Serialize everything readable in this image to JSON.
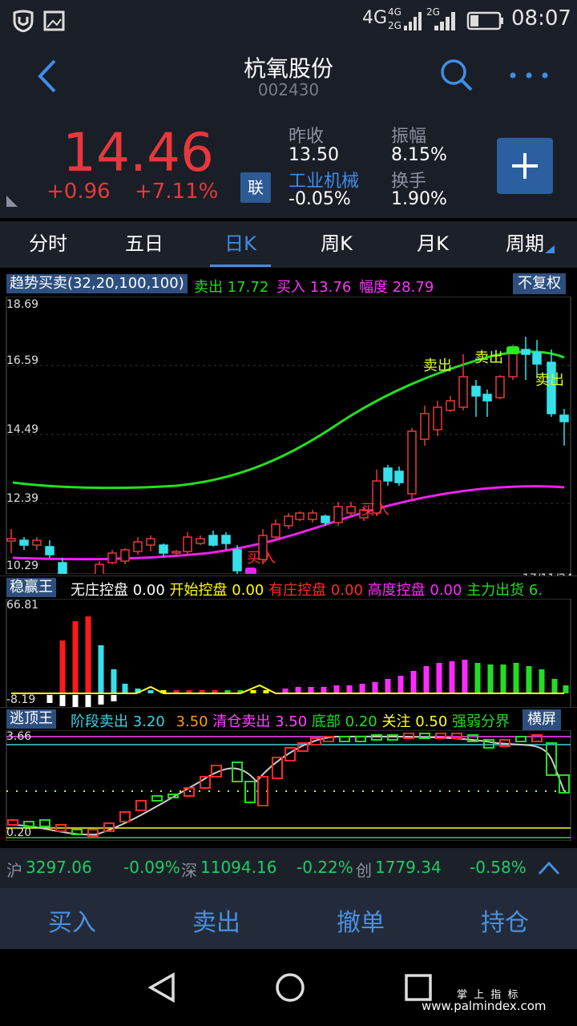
{
  "status": {
    "network": "4G",
    "network2_top": "4G",
    "network2_bottom": "2G",
    "network3": "2G",
    "time": "08:07"
  },
  "header": {
    "title": "杭氧股份",
    "code": "002430"
  },
  "quote": {
    "price": "14.46",
    "change": "+0.96",
    "change_pct": "+7.11%",
    "prev_close_label": "昨收",
    "prev_close": "13.50",
    "amplitude_label": "振幅",
    "amplitude": "8.15%",
    "sector": "工业机械",
    "sector_chg": "-0.05%",
    "turnover_label": "换手",
    "turnover": "1.90%",
    "link_badge": "联"
  },
  "tabs": [
    {
      "label": "分时"
    },
    {
      "label": "五日"
    },
    {
      "label": "日K"
    },
    {
      "label": "周K"
    },
    {
      "label": "月K"
    },
    {
      "label": "周期"
    }
  ],
  "chart1": {
    "indicator": "趋势买卖(32,20,100,100)",
    "sell_label": "卖出",
    "sell_value": "17.72",
    "buy_label": "买入",
    "buy_value": "13.76",
    "range_label": "幅度",
    "range_value": "28.79",
    "button": "不复权",
    "y_labels": [
      "18.69",
      "16.59",
      "14.49",
      "12.39",
      "10.29"
    ],
    "date": "17/11/24",
    "signals": [
      {
        "text": "买入",
        "kind": "buy"
      },
      {
        "text": "买入",
        "kind": "buy"
      },
      {
        "text": "卖出",
        "kind": "sell"
      },
      {
        "text": "卖出",
        "kind": "sell"
      },
      {
        "text": "卖出",
        "kind": "sell"
      }
    ]
  },
  "chart2": {
    "indicator": "稳赢王",
    "items": [
      {
        "label": "无庄控盘",
        "value": "0.00",
        "color": "#ffffff"
      },
      {
        "label": "开始控盘",
        "value": "0.00",
        "color": "#ffff00"
      },
      {
        "label": "有庄控盘",
        "value": "0.00",
        "color": "#ff2a2a"
      },
      {
        "label": "高度控盘",
        "value": "0.00",
        "color": "#ff2aff"
      },
      {
        "label": "主力出货",
        "value": "6.",
        "color": "#22dd22"
      }
    ],
    "y_top": "66.81",
    "y_bottom": "-8.19"
  },
  "chart3": {
    "indicator": "逃顶王",
    "items": [
      {
        "label": "阶段卖出",
        "value": "3.20",
        "color": "#40d0e0"
      },
      {
        "label": "",
        "value": "3.50",
        "color": "#ff9a1a"
      },
      {
        "label": "清仓卖出",
        "value": "3.50",
        "color": "#ff44ff"
      },
      {
        "label": "底部",
        "value": "0.20",
        "color": "#22dd22"
      },
      {
        "label": "关注",
        "value": "0.50",
        "color": "#ffff22"
      },
      {
        "label": "强弱分界",
        "value": "",
        "color": "#22dd22"
      }
    ],
    "button": "横屏",
    "y_top": "3.66",
    "y_bottom": "0.20"
  },
  "ticker": {
    "sh_label": "沪",
    "sh_value": "3297.06",
    "sh_chg": "-0.09%",
    "sz_label": "深",
    "sz_value": "11094.16",
    "sz_chg": "-0.22%",
    "cy_label": "创",
    "cy_value": "1779.34",
    "cy_chg": "-0.58%"
  },
  "actions": {
    "buy": "买入",
    "sell": "卖出",
    "cancel": "撤单",
    "position": "持仓"
  },
  "watermark": {
    "line1": "掌 上 指 标",
    "line2": "www.palmindex.com"
  },
  "colors": {
    "up": "#e8383d",
    "down": "#36e0ea",
    "accent": "#3f8ee8",
    "sell_line": "#22e022",
    "buy_line": "#ee22ee"
  }
}
